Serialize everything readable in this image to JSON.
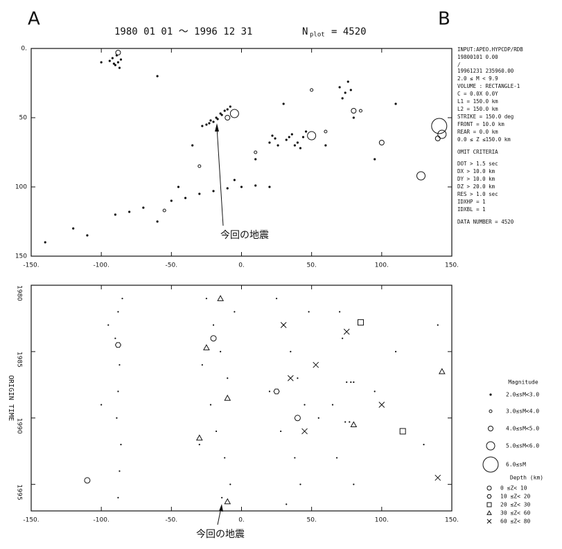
{
  "header": {
    "left": "A",
    "right": "B",
    "period": "1980 01 01 ～ 1996 12 31",
    "n_label": "N",
    "n_sub": "plot",
    "n_value": "= 4520"
  },
  "info": [
    "INPUT:APEO.HYPCDP/RDB",
    "19800101        0.00",
    "/",
    "19961231   235960.00",
    "2.0 ≤ M < 9.9",
    "VOLUME : RECTANGLE-1",
    "C  =  0.0X      0.0Y",
    "L1   = 150.0 km",
    "L2   = 150.0 km",
    "STRIKE = 150.0 deg",
    "FRONT  =  10.0 km",
    "REAR   =   0.0 km",
    "0.0 ≤ Z ≤150.0 km",
    "OMIT CRITERIA",
    "DOT  >  1.5 sec",
    "DX   > 10.0 km",
    "DY   > 10.0 km",
    "DZ   > 20.0 km",
    "RES  >  1.0 sec",
    "IDXHP =  1",
    "IDXBL =  1",
    "DATA NUMBER =  4520"
  ],
  "annotations": [
    "今回の地震",
    "今回の地震"
  ],
  "magnitude_title": "Magnitude",
  "depth_title": "Depth (km)",
  "chart_data": [
    {
      "type": "scatter",
      "xlim": [
        -150,
        150
      ],
      "ylim": [
        0,
        150
      ],
      "y_inverted": true,
      "xticks": [
        {
          "value": -150,
          "label": "-150."
        },
        {
          "value": -100,
          "label": "-100."
        },
        {
          "value": -50,
          "label": "-50."
        },
        {
          "value": 0,
          "label": "0."
        },
        {
          "value": 50,
          "label": "50."
        },
        {
          "value": 100,
          "label": "100."
        },
        {
          "value": 150,
          "label": "150."
        }
      ],
      "yticks": [
        {
          "value": 0,
          "label": "0."
        },
        50,
        100,
        150
      ],
      "series": [
        {
          "name": "2.0≤sM<3.0",
          "size": 1.1,
          "color": "#111",
          "x": [
            -92,
            -88,
            -90,
            -86,
            -94,
            -89,
            -87,
            -91,
            -25,
            -22,
            -18,
            -15,
            -12,
            -10,
            -14,
            -20,
            -28,
            -8,
            -17,
            -23,
            20,
            24,
            26,
            22,
            32,
            36,
            40,
            44,
            38,
            46,
            42,
            34,
            70,
            74,
            76,
            72,
            78,
            -110,
            -90,
            -70,
            -50,
            -40,
            -30,
            -20,
            -10,
            0,
            10,
            20,
            -60,
            -80,
            -5,
            -45,
            -140,
            -120,
            -100,
            -60,
            10,
            30,
            60,
            110,
            80,
            95,
            -35
          ],
          "values": [
            7,
            10,
            12,
            8,
            9,
            5,
            14,
            11,
            55,
            52,
            50,
            47,
            45,
            44,
            48,
            53,
            56,
            42,
            51,
            54,
            68,
            65,
            70,
            63,
            66,
            62,
            68,
            64,
            70,
            60,
            72,
            64,
            28,
            32,
            24,
            36,
            30,
            135,
            120,
            115,
            110,
            108,
            105,
            103,
            101,
            100,
            99,
            100,
            125,
            118,
            95,
            100,
            140,
            130,
            10,
            20,
            80,
            40,
            70,
            40,
            50,
            80,
            70
          ]
        },
        {
          "name": "3.0≤sM<4.0",
          "size": 2,
          "color": "#111",
          "x": [
            -30,
            10,
            60,
            -55,
            85,
            50
          ],
          "values": [
            85,
            75,
            60,
            117,
            45,
            30
          ]
        },
        {
          "name": "4.0≤sM<5.0",
          "size": 3.5,
          "color": "#111",
          "x": [
            -88,
            80,
            -10,
            100,
            140
          ],
          "values": [
            3,
            45,
            50,
            68,
            65
          ]
        },
        {
          "name": "5.0≤sM<6.0",
          "size": 6,
          "color": "#111",
          "x": [
            -5,
            50,
            128,
            143
          ],
          "values": [
            47,
            63,
            92,
            62
          ]
        },
        {
          "name": "6.0≤sM",
          "size": 11,
          "color": "#111",
          "x": [
            141
          ],
          "values": [
            56
          ]
        }
      ]
    },
    {
      "type": "scatter",
      "xlim": [
        -150,
        150
      ],
      "ylim": [
        1980,
        1997
      ],
      "y_inverted": true,
      "y_label": "ORIGIN TIME",
      "xticks": [
        {
          "value": -150,
          "label": "-150."
        },
        {
          "value": -100,
          "label": "-100."
        },
        {
          "value": -50,
          "label": "-50."
        },
        {
          "value": 0,
          "label": "0."
        },
        {
          "value": 50,
          "label": "50."
        },
        {
          "value": 100,
          "label": "100."
        },
        {
          "value": 150,
          "label": "150."
        }
      ],
      "yticks": [
        1980,
        1985,
        1990,
        1995
      ],
      "series": [
        {
          "symbol": "dot",
          "color": "#111",
          "x": [
            -88,
            -90,
            -87,
            -88,
            -89,
            -86,
            -87,
            -88,
            -95,
            -100,
            -85,
            -25,
            -20,
            -15,
            -10,
            -22,
            -18,
            -12,
            -8,
            -28,
            -5,
            -14,
            -30,
            25,
            30,
            35,
            40,
            45,
            28,
            38,
            42,
            32,
            48,
            20,
            70,
            72,
            75,
            78,
            80,
            74,
            77,
            68,
            80,
            65,
            110,
            130,
            140,
            55,
            95
          ],
          "values": [
            1982,
            1984,
            1986,
            1988,
            1990,
            1992,
            1994,
            1996,
            1983,
            1989,
            1981,
            1981,
            1983,
            1985,
            1987,
            1989,
            1991,
            1993,
            1995,
            1986,
            1982,
            1996,
            1992,
            1981,
            1983,
            1985,
            1987,
            1989,
            1991,
            1993,
            1995,
            1996.5,
            1982,
            1988,
            1982,
            1984,
            1987.3,
            1987.3,
            1987.3,
            1990.3,
            1990.3,
            1993,
            1995,
            1989,
            1985,
            1992,
            1983,
            1990,
            1988
          ]
        },
        {
          "name": "0 ≤Z< 10",
          "symbol": "circle",
          "color": "#111",
          "x": [
            -110,
            -20,
            40
          ],
          "values": [
            1994.7,
            1984,
            1990
          ]
        },
        {
          "name": "10 ≤Z< 20",
          "symbol": "hexagon",
          "color": "#111",
          "x": [
            -88,
            25
          ],
          "values": [
            1984.5,
            1988
          ]
        },
        {
          "name": "20 ≤Z< 30",
          "symbol": "square",
          "color": "#111",
          "x": [
            85,
            115
          ],
          "values": [
            1982.8,
            1991
          ]
        },
        {
          "name": "30 ≤Z< 60",
          "symbol": "triangle",
          "color": "#111",
          "x": [
            -15,
            -25,
            -10,
            -30,
            80,
            143,
            -10
          ],
          "values": [
            1981,
            1984.7,
            1988.5,
            1991.5,
            1990.5,
            1986.5,
            1996.3
          ]
        },
        {
          "name": "60 ≤Z< 80",
          "symbol": "cross",
          "color": "#111",
          "x": [
            30,
            35,
            53,
            100,
            140,
            75,
            45
          ],
          "values": [
            1983,
            1987,
            1986,
            1989,
            1994.5,
            1983.5,
            1991
          ]
        }
      ]
    }
  ]
}
